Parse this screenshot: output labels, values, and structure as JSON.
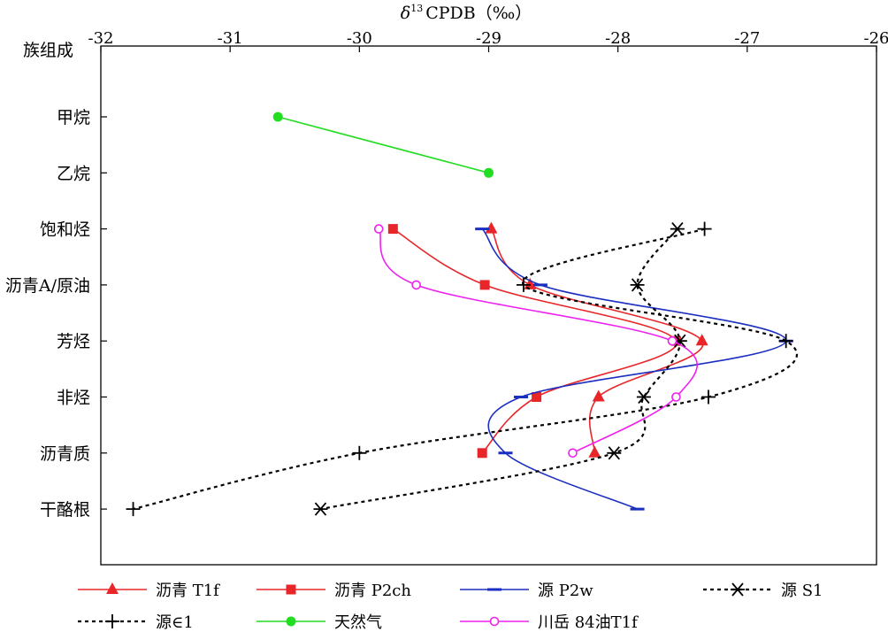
{
  "chart_data": {
    "type": "line",
    "orientation": "horizontal-values",
    "title": "δ¹³CPDB（‰）",
    "title_symbol": "δ",
    "title_sup": "13",
    "title_rest": "CPDB（‰）",
    "ylabel": "族组成",
    "xlim": [
      -32,
      -26
    ],
    "x_ticks": [
      -32,
      -31,
      -30,
      -29,
      -28,
      -27,
      -26
    ],
    "x_tick_labels": [
      "-32",
      "-31",
      "-30",
      "-29",
      "-28",
      "-27",
      "-26"
    ],
    "categories": [
      "甲烷",
      "乙烷",
      "饱和烃",
      "沥青A/原油",
      "芳烃",
      "非烃",
      "沥青质",
      "干酪根"
    ],
    "series": [
      {
        "name": "沥青 T1f",
        "color": "#e8262a",
        "dash": "solid",
        "marker": "triangle",
        "points": [
          [
            "饱和烃",
            -28.98
          ],
          [
            "沥青A/原油",
            -28.68
          ],
          [
            "芳烃",
            -27.35
          ],
          [
            "非烃",
            -28.15
          ],
          [
            "沥青质",
            -28.18
          ]
        ]
      },
      {
        "name": "沥青 P2ch",
        "color": "#e8262a",
        "dash": "solid",
        "marker": "square",
        "points": [
          [
            "饱和烃",
            -29.74
          ],
          [
            "沥青A/原油",
            -29.03
          ],
          [
            "芳烃",
            -27.55
          ],
          [
            "非烃",
            -28.63
          ],
          [
            "沥青质",
            -29.05
          ]
        ]
      },
      {
        "name": "源 P2w",
        "color": "#1a2ec0",
        "dash": "solid",
        "marker": "dash",
        "points": [
          [
            "饱和烃",
            -29.05
          ],
          [
            "沥青A/原油",
            -28.6
          ],
          [
            "芳烃",
            -26.7
          ],
          [
            "非烃",
            -28.75
          ],
          [
            "沥青质",
            -28.87
          ],
          [
            "干酪根",
            -27.85
          ]
        ]
      },
      {
        "name": "源 S1",
        "color": "#000000",
        "dash": "dotted",
        "marker": "asterisk",
        "points": [
          [
            "饱和烃",
            -27.54
          ],
          [
            "沥青A/原油",
            -27.85
          ],
          [
            "芳烃",
            -27.52
          ],
          [
            "非烃",
            -27.8
          ],
          [
            "沥青质",
            -28.03
          ],
          [
            "干酪根",
            -30.3
          ]
        ]
      },
      {
        "name": "源∈1",
        "color": "#000000",
        "dash": "dotted",
        "marker": "plus",
        "points": [
          [
            "饱和烃",
            -27.33
          ],
          [
            "沥青A/原油",
            -28.73
          ],
          [
            "芳烃",
            -26.7
          ],
          [
            "非烃",
            -27.3
          ],
          [
            "沥青质",
            -30.0
          ],
          [
            "干酪根",
            -31.75
          ]
        ]
      },
      {
        "name": "天然气",
        "color": "#22dd22",
        "dash": "solid",
        "marker": "circle",
        "points": [
          [
            "甲烷",
            -30.63
          ],
          [
            "乙烷",
            -29.0
          ]
        ]
      },
      {
        "name": "川岳 84油T1f",
        "color": "#ee22ee",
        "dash": "solid",
        "marker": "circle-open",
        "points": [
          [
            "饱和烃",
            -29.85
          ],
          [
            "沥青A/原油",
            -29.56
          ],
          [
            "芳烃",
            -27.58
          ],
          [
            "非烃",
            -27.55
          ],
          [
            "沥青质",
            -28.35
          ]
        ]
      }
    ],
    "legend": {
      "position": "bottom",
      "rows": [
        [
          "沥青 T1f",
          "沥青 P2ch",
          "源 P2w",
          "源 S1"
        ],
        [
          "源∈1",
          "天然气",
          "川岳 84油T1f"
        ]
      ]
    },
    "grid": false
  }
}
